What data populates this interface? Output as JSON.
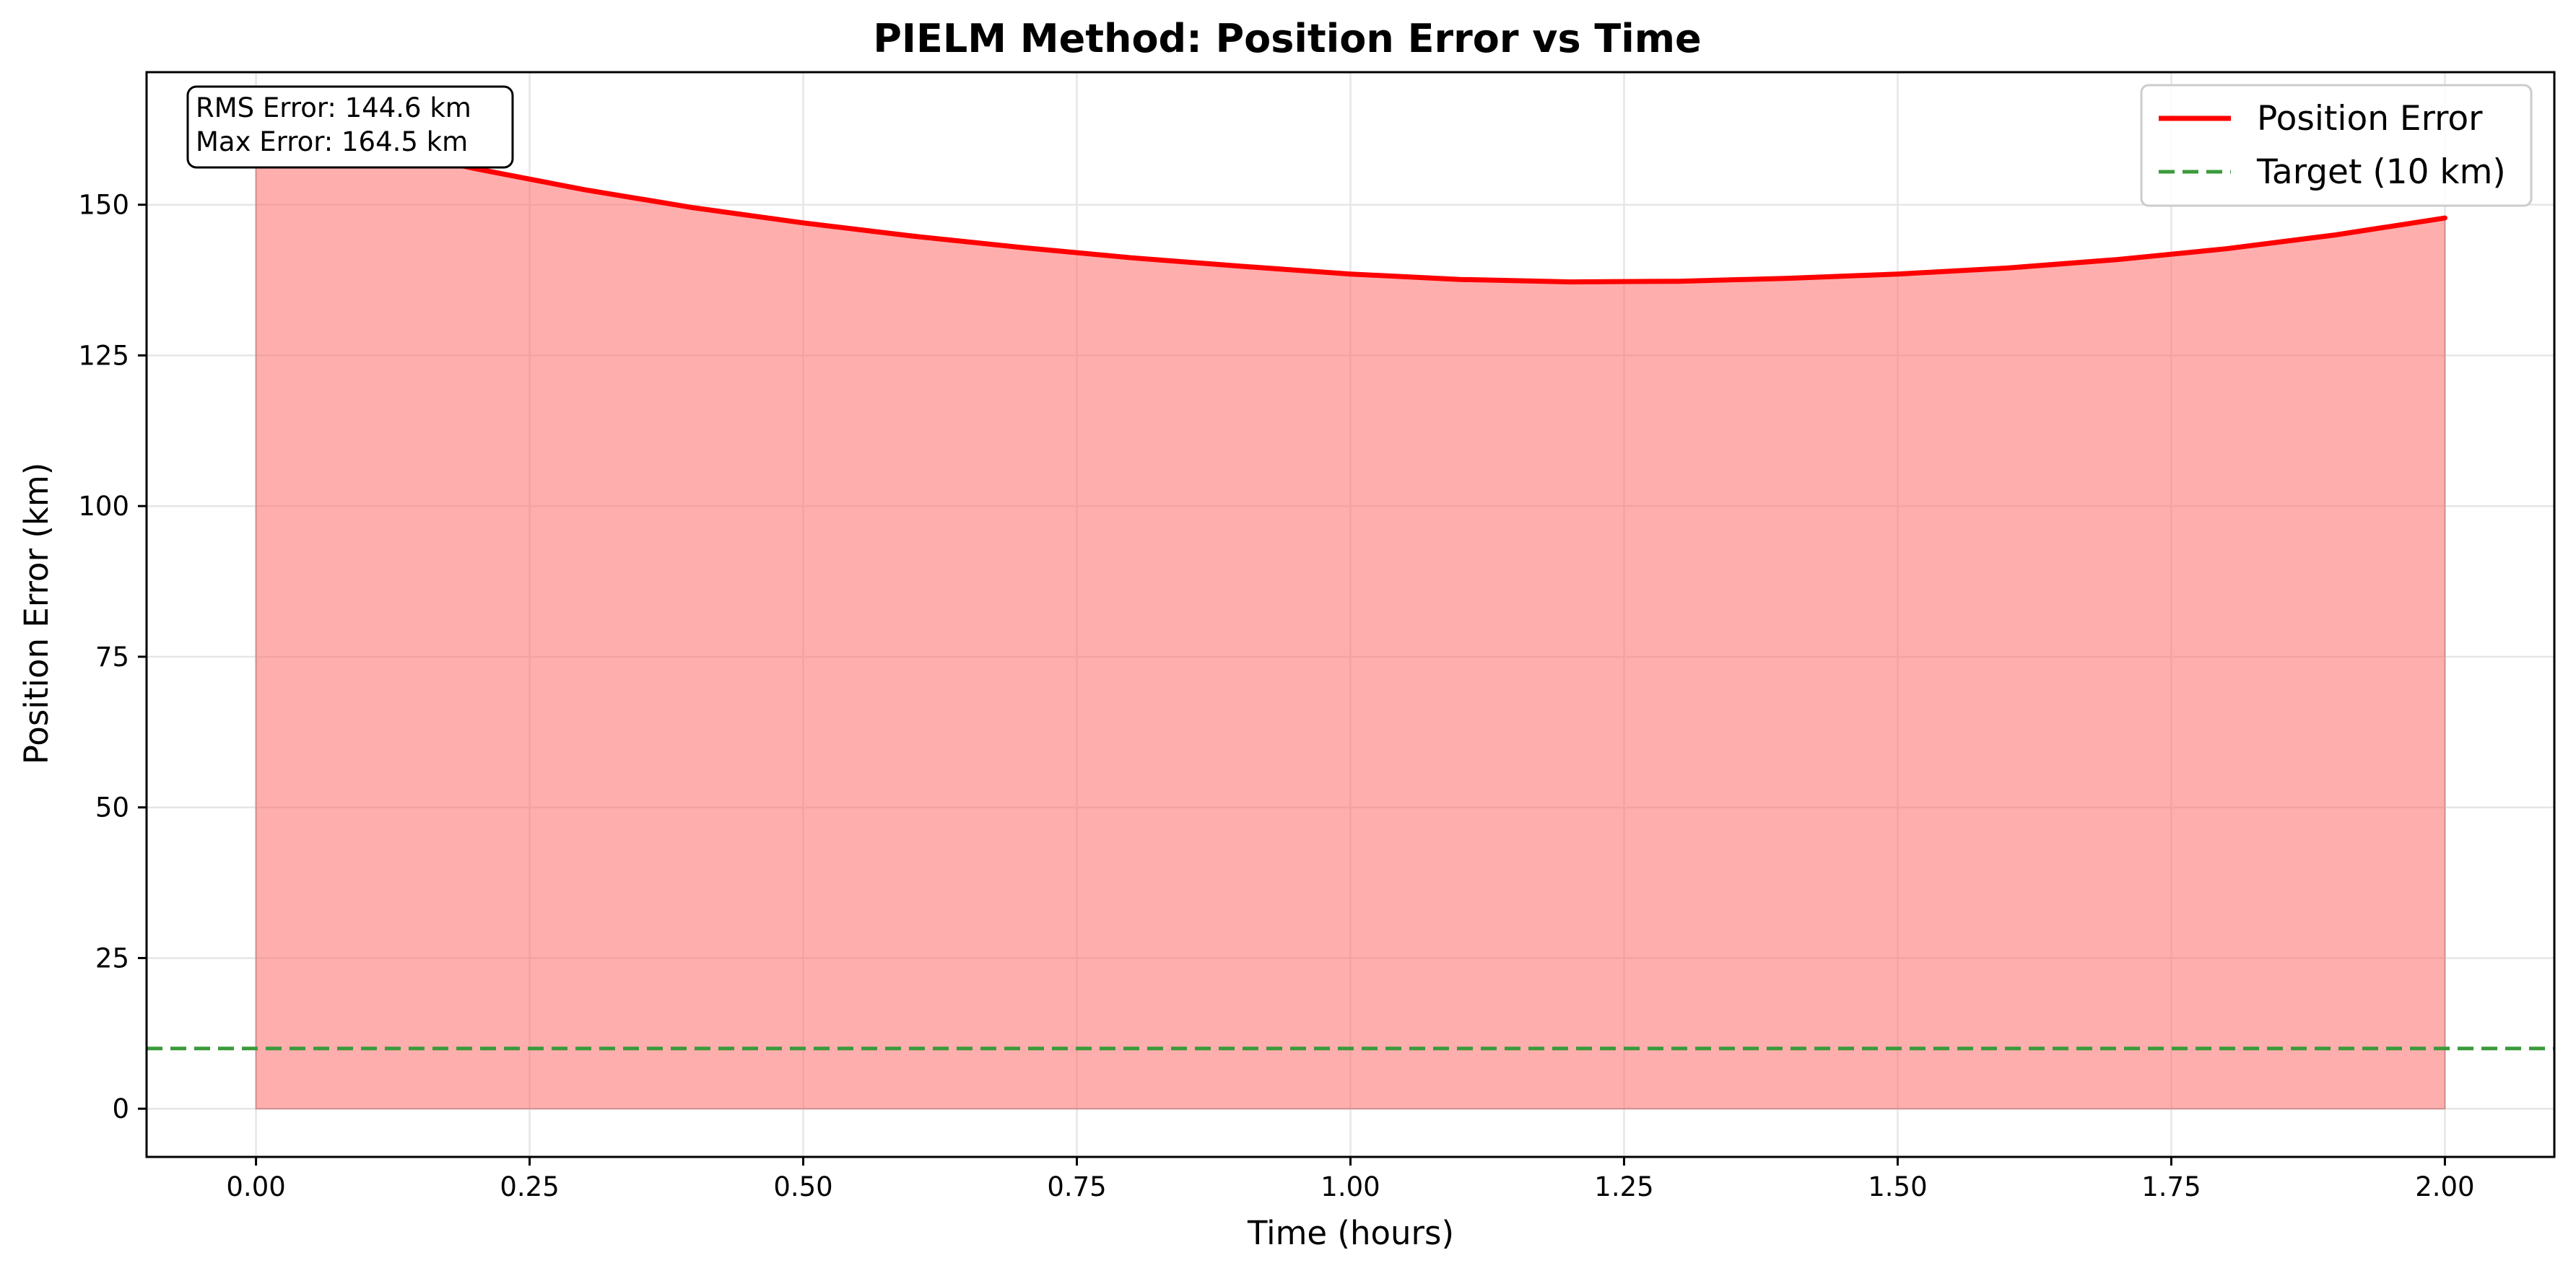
{
  "chart_data": {
    "type": "line",
    "title": "PIELM Method: Position Error vs Time",
    "xlabel": "Time (hours)",
    "ylabel": "Position Error (km)",
    "xlim": [
      -0.1,
      2.1
    ],
    "ylim": [
      -8,
      172
    ],
    "xticks": [
      0.0,
      0.25,
      0.5,
      0.75,
      1.0,
      1.25,
      1.5,
      1.75,
      2.0
    ],
    "xtick_labels": [
      "0.00",
      "0.25",
      "0.50",
      "0.75",
      "1.00",
      "1.25",
      "1.50",
      "1.75",
      "2.00"
    ],
    "yticks": [
      0,
      25,
      50,
      75,
      100,
      125,
      150
    ],
    "ytick_labels": [
      "0",
      "25",
      "50",
      "75",
      "100",
      "125",
      "150"
    ],
    "grid": true,
    "legend_position": "top-right",
    "series": [
      {
        "name": "Position Error",
        "color": "#ff0000",
        "style": "solid",
        "fill_to_zero": true,
        "fill_color": "#ff6b6b",
        "x": [
          0.0,
          0.1,
          0.2,
          0.3,
          0.4,
          0.5,
          0.6,
          0.7,
          0.8,
          0.9,
          1.0,
          1.1,
          1.2,
          1.3,
          1.4,
          1.5,
          1.6,
          1.7,
          1.8,
          1.9,
          2.0
        ],
        "y": [
          164.5,
          160.0,
          156.0,
          152.5,
          149.5,
          147.0,
          144.8,
          142.9,
          141.2,
          139.8,
          138.5,
          137.6,
          137.2,
          137.3,
          137.8,
          138.5,
          139.5,
          140.9,
          142.7,
          145.0,
          147.8
        ]
      },
      {
        "name": "Target (10 km)",
        "color": "#3a9a3a",
        "style": "dashed",
        "y_constant": 10
      }
    ],
    "stats": {
      "rms_line": "RMS Error: 144.6 km",
      "max_line": "Max Error: 164.5 km"
    }
  }
}
